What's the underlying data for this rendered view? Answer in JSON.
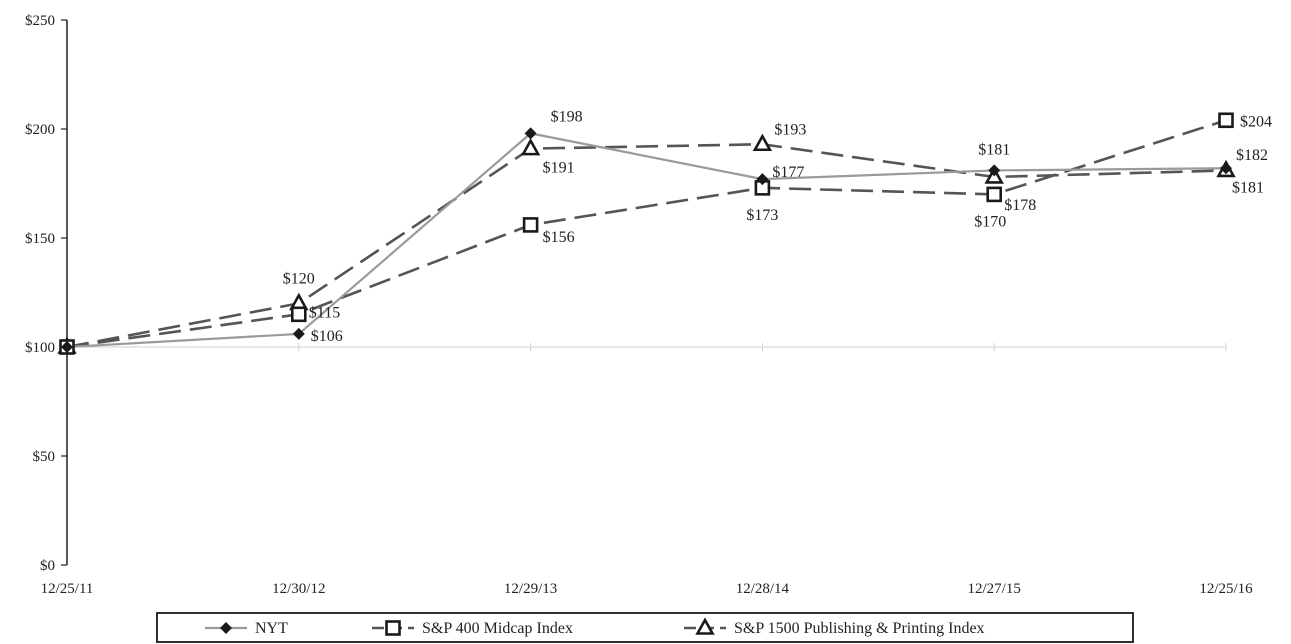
{
  "chart_data": {
    "type": "line",
    "categories": [
      "12/25/11",
      "12/30/12",
      "12/29/13",
      "12/28/14",
      "12/27/15",
      "12/25/16"
    ],
    "ylim": [
      0,
      250
    ],
    "y_ticks": [
      0,
      50,
      100,
      150,
      200,
      250
    ],
    "y_tick_labels": [
      "$0",
      "$50",
      "$100",
      "$150",
      "$200",
      "$250"
    ],
    "grid": false,
    "baseline_reference": 100,
    "legend_position": "bottom",
    "series": [
      {
        "name": "NYT",
        "values": [
          100,
          106,
          198,
          177,
          181,
          182
        ],
        "data_labels": [
          "",
          "$106",
          "$198",
          "$177",
          "$181",
          "$182"
        ],
        "color": "#9a9a9a",
        "line_style": "solid",
        "marker": "diamond"
      },
      {
        "name": "S&P 400 Midcap Index",
        "values": [
          100,
          115,
          156,
          173,
          170,
          204
        ],
        "data_labels": [
          "",
          "$115",
          "$156",
          "$173",
          "$170",
          "$204"
        ],
        "color": "#555555",
        "line_style": "dashed",
        "marker": "square"
      },
      {
        "name": "S&P 1500 Publishing & Printing Index",
        "values": [
          100,
          120,
          191,
          193,
          178,
          181
        ],
        "data_labels": [
          "",
          "$120",
          "$191",
          "$193",
          "$178",
          "$181"
        ],
        "color": "#555555",
        "line_style": "dashed",
        "marker": "triangle"
      }
    ]
  }
}
